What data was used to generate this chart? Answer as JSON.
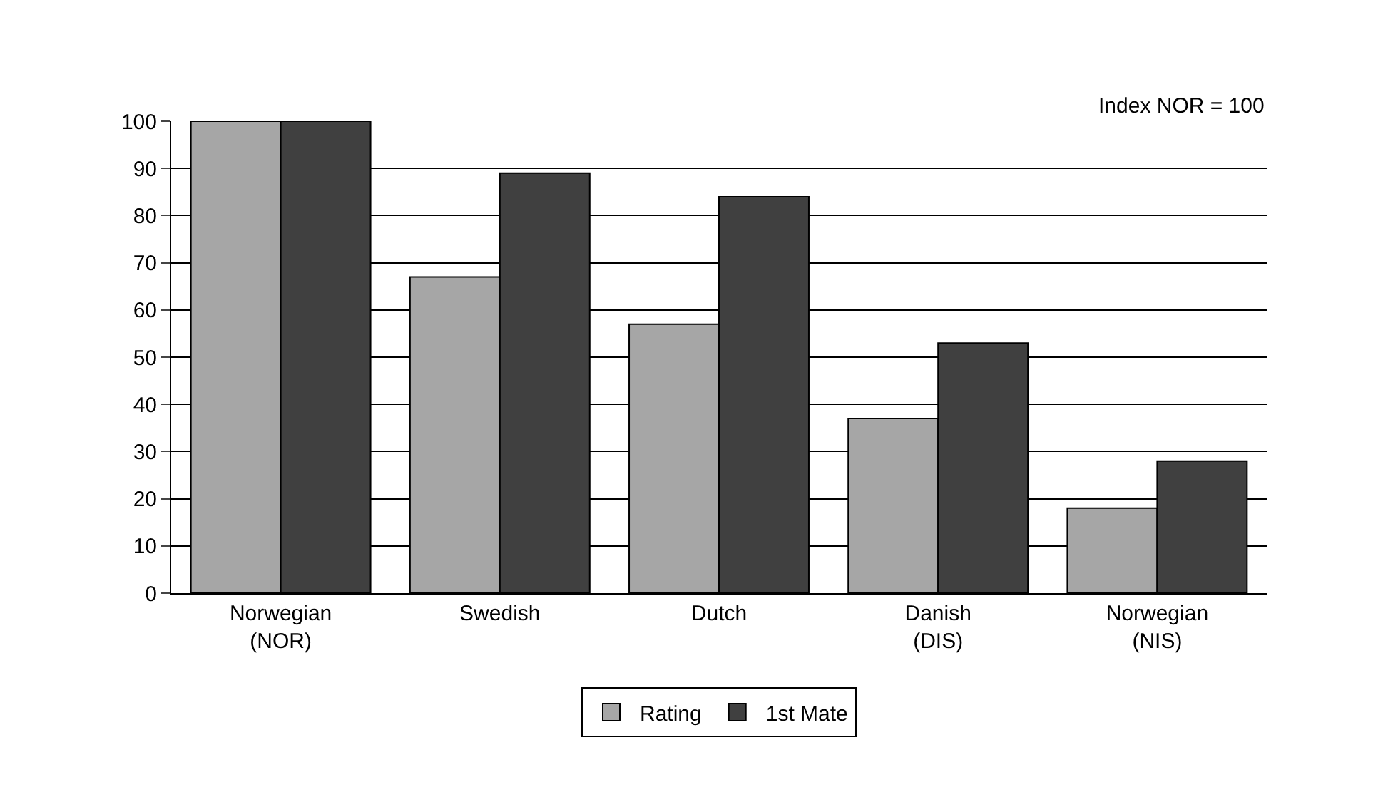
{
  "chart_data": {
    "type": "bar",
    "categories": [
      "Norwegian\n(NOR)",
      "Swedish",
      "Dutch",
      "Danish\n(DIS)",
      "Norwegian\n(NIS)"
    ],
    "series": [
      {
        "name": "Rating",
        "color": "#a6a6a6",
        "values": [
          100,
          67,
          57,
          37,
          18
        ]
      },
      {
        "name": "1st Mate",
        "color": "#404040",
        "values": [
          100,
          89,
          84,
          53,
          28
        ]
      }
    ],
    "ylim": [
      0,
      100
    ],
    "yticks": [
      0,
      10,
      20,
      30,
      40,
      50,
      60,
      70,
      80,
      90,
      100
    ],
    "grid": "y",
    "legend": "bottom",
    "annotations": [
      "Index NOR = 100"
    ]
  }
}
